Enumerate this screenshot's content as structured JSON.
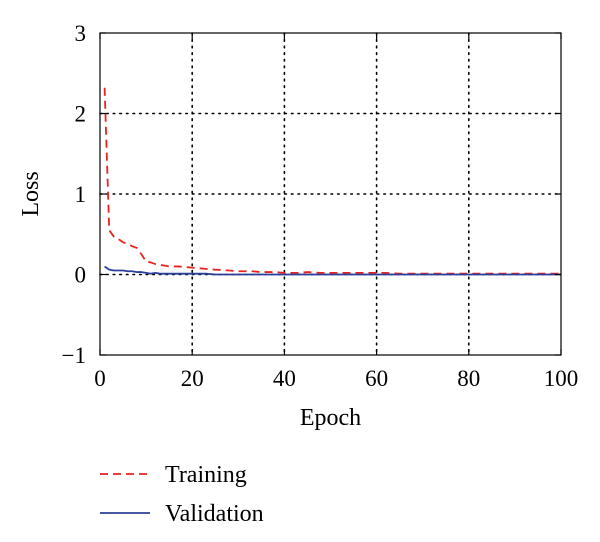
{
  "chart_data": {
    "type": "line",
    "title": "",
    "xlabel": "Epoch",
    "ylabel": "Loss",
    "xlim": [
      0,
      100
    ],
    "ylim": [
      -1,
      3
    ],
    "x_ticks": [
      0,
      20,
      40,
      60,
      80,
      100
    ],
    "x_tick_labels": [
      "0",
      "20",
      "40",
      "60",
      "80",
      "100"
    ],
    "y_ticks": [
      -1,
      0,
      1,
      2,
      3
    ],
    "y_tick_labels": [
      "−1",
      "0",
      "1",
      "2",
      "3"
    ],
    "grid": "dotted",
    "legend_position": "below",
    "series": [
      {
        "name": "Training",
        "color": "#e8231f",
        "line_style": "dashed",
        "x": [
          1,
          2,
          3,
          4,
          5,
          6,
          7,
          8,
          9,
          10,
          11,
          12,
          13,
          14,
          15,
          17,
          19,
          21,
          23,
          25,
          28,
          30,
          33,
          35,
          38,
          40,
          43,
          45,
          48,
          50,
          53,
          55,
          58,
          60,
          62,
          65,
          70,
          75,
          80,
          85,
          90,
          95,
          100
        ],
        "values": [
          2.32,
          0.55,
          0.47,
          0.44,
          0.4,
          0.38,
          0.35,
          0.33,
          0.25,
          0.16,
          0.15,
          0.13,
          0.12,
          0.11,
          0.1,
          0.1,
          0.09,
          0.08,
          0.07,
          0.06,
          0.05,
          0.04,
          0.04,
          0.03,
          0.03,
          0.02,
          0.02,
          0.03,
          0.02,
          0.02,
          0.02,
          0.02,
          0.02,
          0.02,
          0.02,
          0.01,
          0.01,
          0.01,
          0.01,
          0.01,
          0.01,
          0.01,
          0.01
        ]
      },
      {
        "name": "Validation",
        "color": "#2b3f9a",
        "line_style": "solid",
        "x": [
          1,
          2,
          3,
          4,
          5,
          6,
          7,
          8,
          9,
          10,
          11,
          12,
          13,
          15,
          17,
          19,
          21,
          23,
          25,
          28,
          30,
          35,
          40,
          45,
          50,
          55,
          60,
          65,
          70,
          75,
          80,
          85,
          90,
          95,
          100
        ],
        "values": [
          0.1,
          0.06,
          0.05,
          0.05,
          0.05,
          0.04,
          0.04,
          0.03,
          0.03,
          0.02,
          0.01,
          0.02,
          0.01,
          0.01,
          0.01,
          0.01,
          0.01,
          0.01,
          0.0,
          0.0,
          0.0,
          0.0,
          0.0,
          0.0,
          0.0,
          0.0,
          0.0,
          0.0,
          0.0,
          0.0,
          0.0,
          0.0,
          0.0,
          0.0,
          0.0
        ]
      }
    ]
  }
}
